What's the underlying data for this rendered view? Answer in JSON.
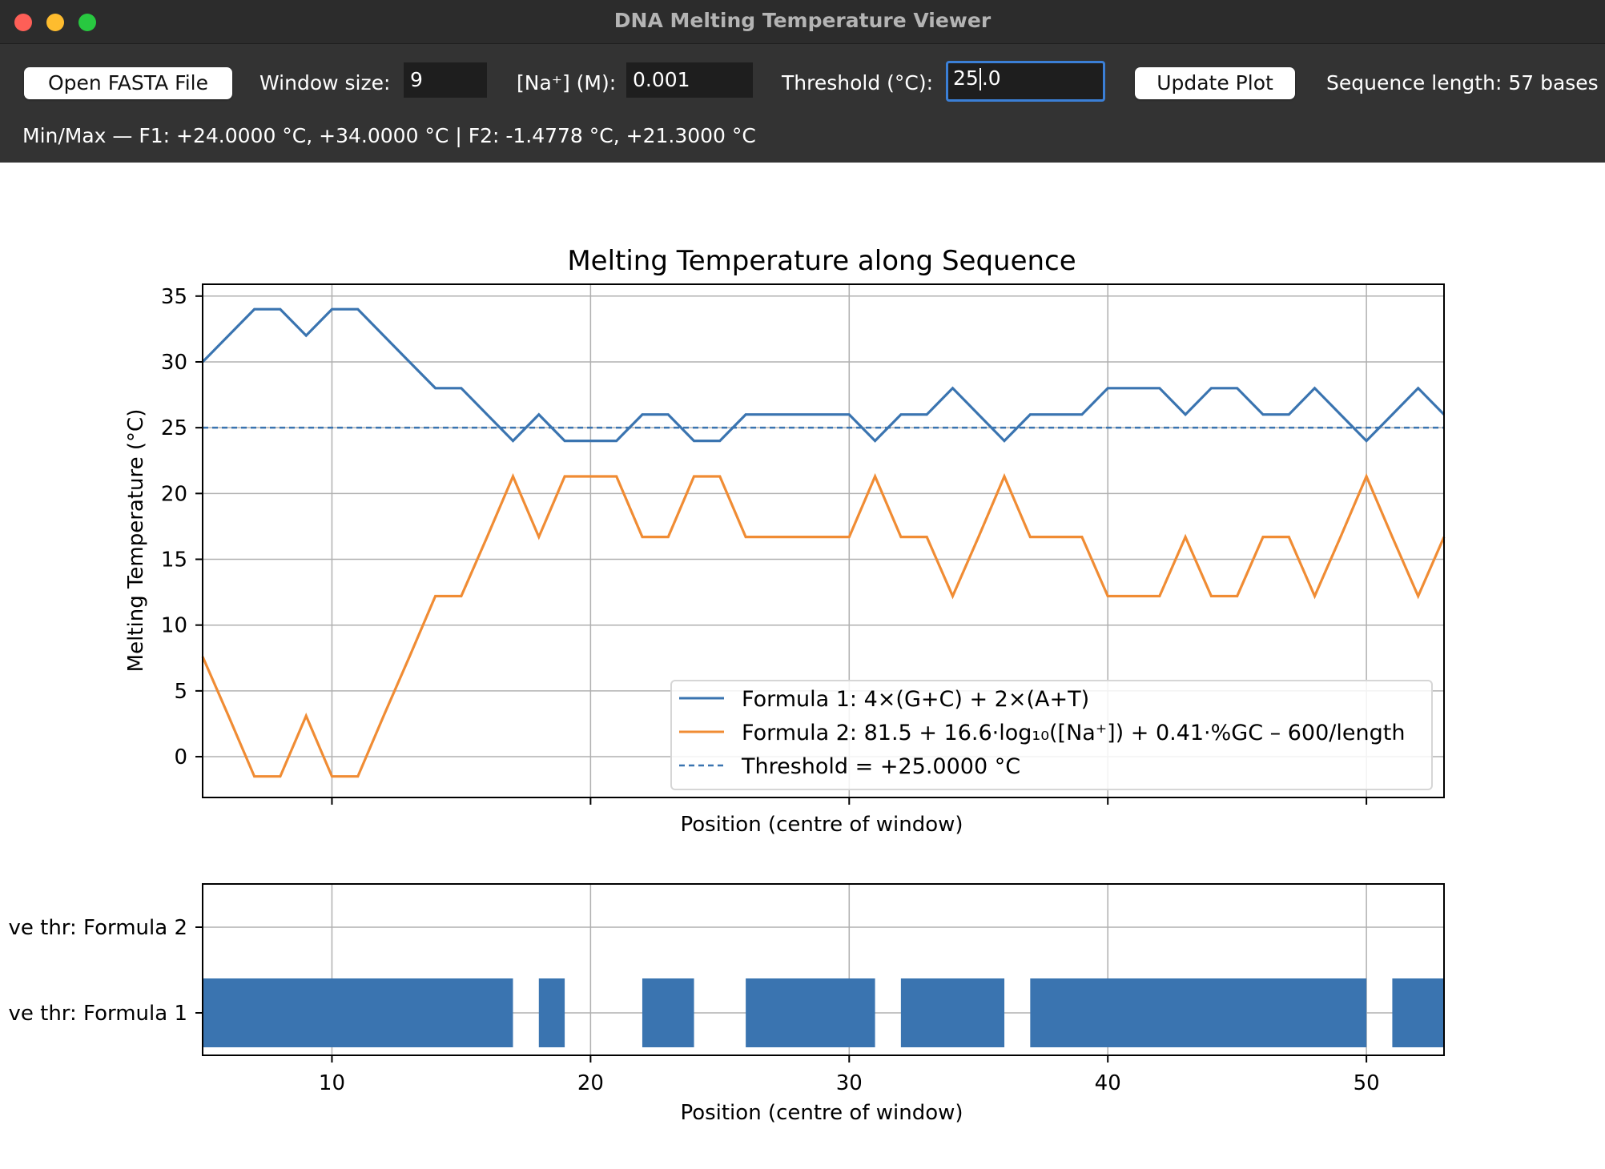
{
  "window": {
    "title": "DNA Melting Temperature Viewer"
  },
  "toolbar": {
    "open_button": "Open FASTA File",
    "window_label": "Window size:",
    "window_value": "9",
    "na_label": "[Na⁺] (M):",
    "na_value": "0.001",
    "threshold_label": "Threshold (°C):",
    "threshold_value_before_caret": "25",
    "threshold_value_after_caret": ".0",
    "update_button": "Update Plot",
    "sequence_length": "Sequence length: 57 bases"
  },
  "status": {
    "minmax": "Min/Max — F1: +24.0000 °C, +34.0000 °C | F2: -1.4778 °C, +21.3000 °C"
  },
  "colors": {
    "formula1": "#3a74b0",
    "formula2": "#f08c34",
    "threshold": "#3a74b0",
    "grid": "#b0b0b0"
  },
  "chart_data": [
    {
      "type": "line",
      "title": "Melting Temperature along Sequence",
      "xlabel": "Position (centre of window)",
      "ylabel": "Melting Temperature (°C)",
      "xlim": [
        5,
        53
      ],
      "ylim": [
        -3.1,
        35.9
      ],
      "xticks": [
        10,
        20,
        30,
        40,
        50
      ],
      "yticks": [
        0,
        5,
        10,
        15,
        20,
        25,
        30,
        35
      ],
      "grid": true,
      "legend_position": "lower-right",
      "x": [
        5,
        6,
        7,
        8,
        9,
        10,
        11,
        12,
        13,
        14,
        15,
        16,
        17,
        18,
        19,
        20,
        21,
        22,
        23,
        24,
        25,
        26,
        27,
        28,
        29,
        30,
        31,
        32,
        33,
        34,
        35,
        36,
        37,
        38,
        39,
        40,
        41,
        42,
        43,
        44,
        45,
        46,
        47,
        48,
        49,
        50,
        51,
        52,
        53
      ],
      "series": [
        {
          "name": "Formula 1: 4×(G+C) + 2×(A+T)",
          "color": "#3a74b0",
          "values": [
            30,
            32,
            34,
            34,
            32,
            34,
            34,
            32,
            30,
            28,
            28,
            26,
            24,
            26,
            24,
            24,
            24,
            26,
            26,
            24,
            24,
            26,
            26,
            26,
            26,
            26,
            24,
            26,
            26,
            28,
            26,
            24,
            26,
            26,
            26,
            28,
            28,
            28,
            26,
            28,
            28,
            26,
            26,
            28,
            26,
            24,
            26,
            28,
            26
          ]
        },
        {
          "name": "Formula 2: 81.5 + 16.6·log₁₀([Na⁺]) + 0.41·%GC – 600/length",
          "color": "#f08c34",
          "values": [
            7.6,
            3.1,
            -1.5,
            -1.5,
            3.1,
            -1.5,
            -1.5,
            3.1,
            7.6,
            12.2,
            12.2,
            16.7,
            21.3,
            16.7,
            21.3,
            21.3,
            21.3,
            16.7,
            16.7,
            21.3,
            21.3,
            16.7,
            16.7,
            16.7,
            16.7,
            16.7,
            21.3,
            16.7,
            16.7,
            12.2,
            16.7,
            21.3,
            16.7,
            16.7,
            16.7,
            12.2,
            12.2,
            12.2,
            16.7,
            12.2,
            12.2,
            16.7,
            16.7,
            12.2,
            16.7,
            21.3,
            16.7,
            12.2,
            16.7
          ]
        }
      ],
      "threshold": {
        "name": "Threshold = +25.0000 °C",
        "value": 25
      }
    },
    {
      "type": "bar",
      "orientation": "horizontal",
      "xlabel": "Position (centre of window)",
      "xlim": [
        5,
        53
      ],
      "xticks": [
        10,
        20,
        30,
        40,
        50
      ],
      "categories": [
        "ve thr: Formula 1",
        "ve thr: Formula 2"
      ],
      "grid": true,
      "segments": [
        {
          "category": "ve thr: Formula 1",
          "ranges": [
            [
              5,
              17
            ],
            [
              18,
              19
            ],
            [
              22,
              24
            ],
            [
              26,
              31
            ],
            [
              32,
              36
            ],
            [
              37,
              50
            ],
            [
              51,
              53
            ]
          ]
        }
      ]
    }
  ]
}
